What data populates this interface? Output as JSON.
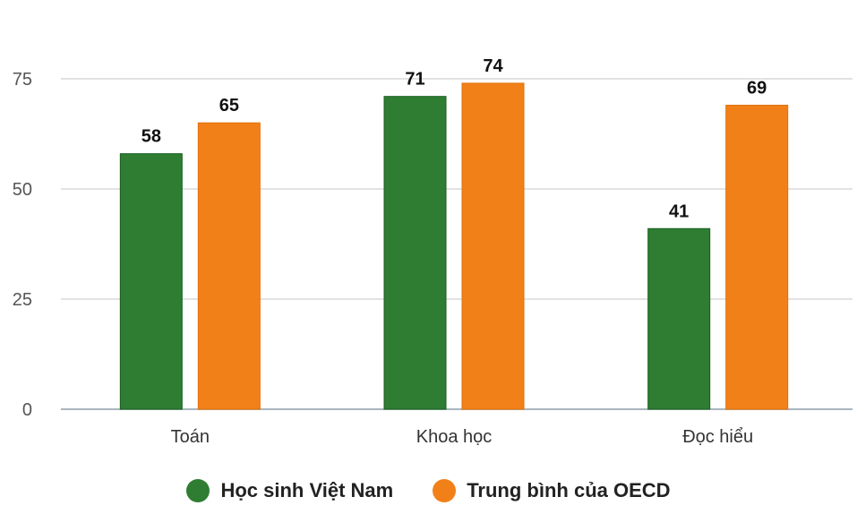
{
  "chart_data": {
    "type": "bar",
    "categories": [
      "Toán",
      "Khoa học",
      "Đọc hiểu"
    ],
    "series": [
      {
        "name": "Học sinh Việt Nam",
        "values": [
          58,
          71,
          41
        ],
        "color": "#2e7d32"
      },
      {
        "name": "Trung bình của OECD",
        "values": [
          65,
          74,
          69
        ],
        "color": "#f28018"
      }
    ],
    "yticks": [
      0,
      25,
      50,
      75
    ],
    "ylim": [
      0,
      75
    ],
    "grid": true,
    "legend": "bottom-center",
    "data_labels": true
  }
}
